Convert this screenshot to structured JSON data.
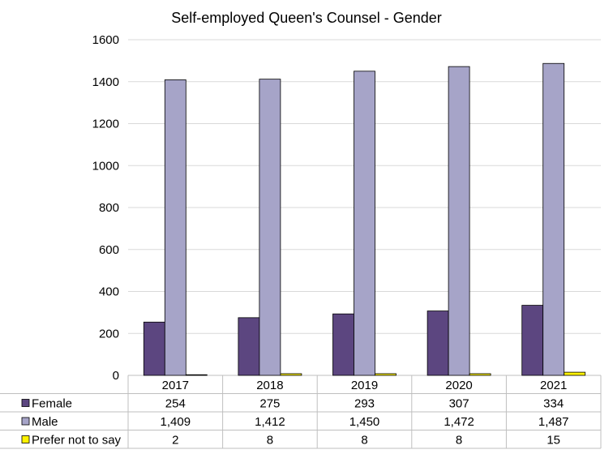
{
  "chart_data": {
    "type": "bar",
    "title": "Self-employed Queen's Counsel - Gender",
    "xlabel": "",
    "ylabel": "",
    "ylim": [
      0,
      1600
    ],
    "yticks": [
      0,
      200,
      400,
      600,
      800,
      1000,
      1200,
      1400,
      1600
    ],
    "ytick_labels": [
      "0",
      "200",
      "400",
      "600",
      "800",
      "1000",
      "1200",
      "1400",
      "1600"
    ],
    "categories": [
      "2017",
      "2018",
      "2019",
      "2020",
      "2021"
    ],
    "grid": "horizontal",
    "legend": "data-table-below",
    "series": [
      {
        "name": "Female",
        "color": "#5c4680",
        "values": [
          254,
          275,
          293,
          307,
          334
        ],
        "labels": [
          "254",
          "275",
          "293",
          "307",
          "334"
        ]
      },
      {
        "name": "Male",
        "color": "#a6a4c8",
        "values": [
          1409,
          1412,
          1450,
          1472,
          1487
        ],
        "labels": [
          "1,409",
          "1,412",
          "1,450",
          "1,472",
          "1,487"
        ]
      },
      {
        "name": "Prefer not to say",
        "color": "#fff200",
        "values": [
          2,
          8,
          8,
          8,
          15
        ],
        "labels": [
          "2",
          "8",
          "8",
          "8",
          "15"
        ]
      }
    ]
  }
}
